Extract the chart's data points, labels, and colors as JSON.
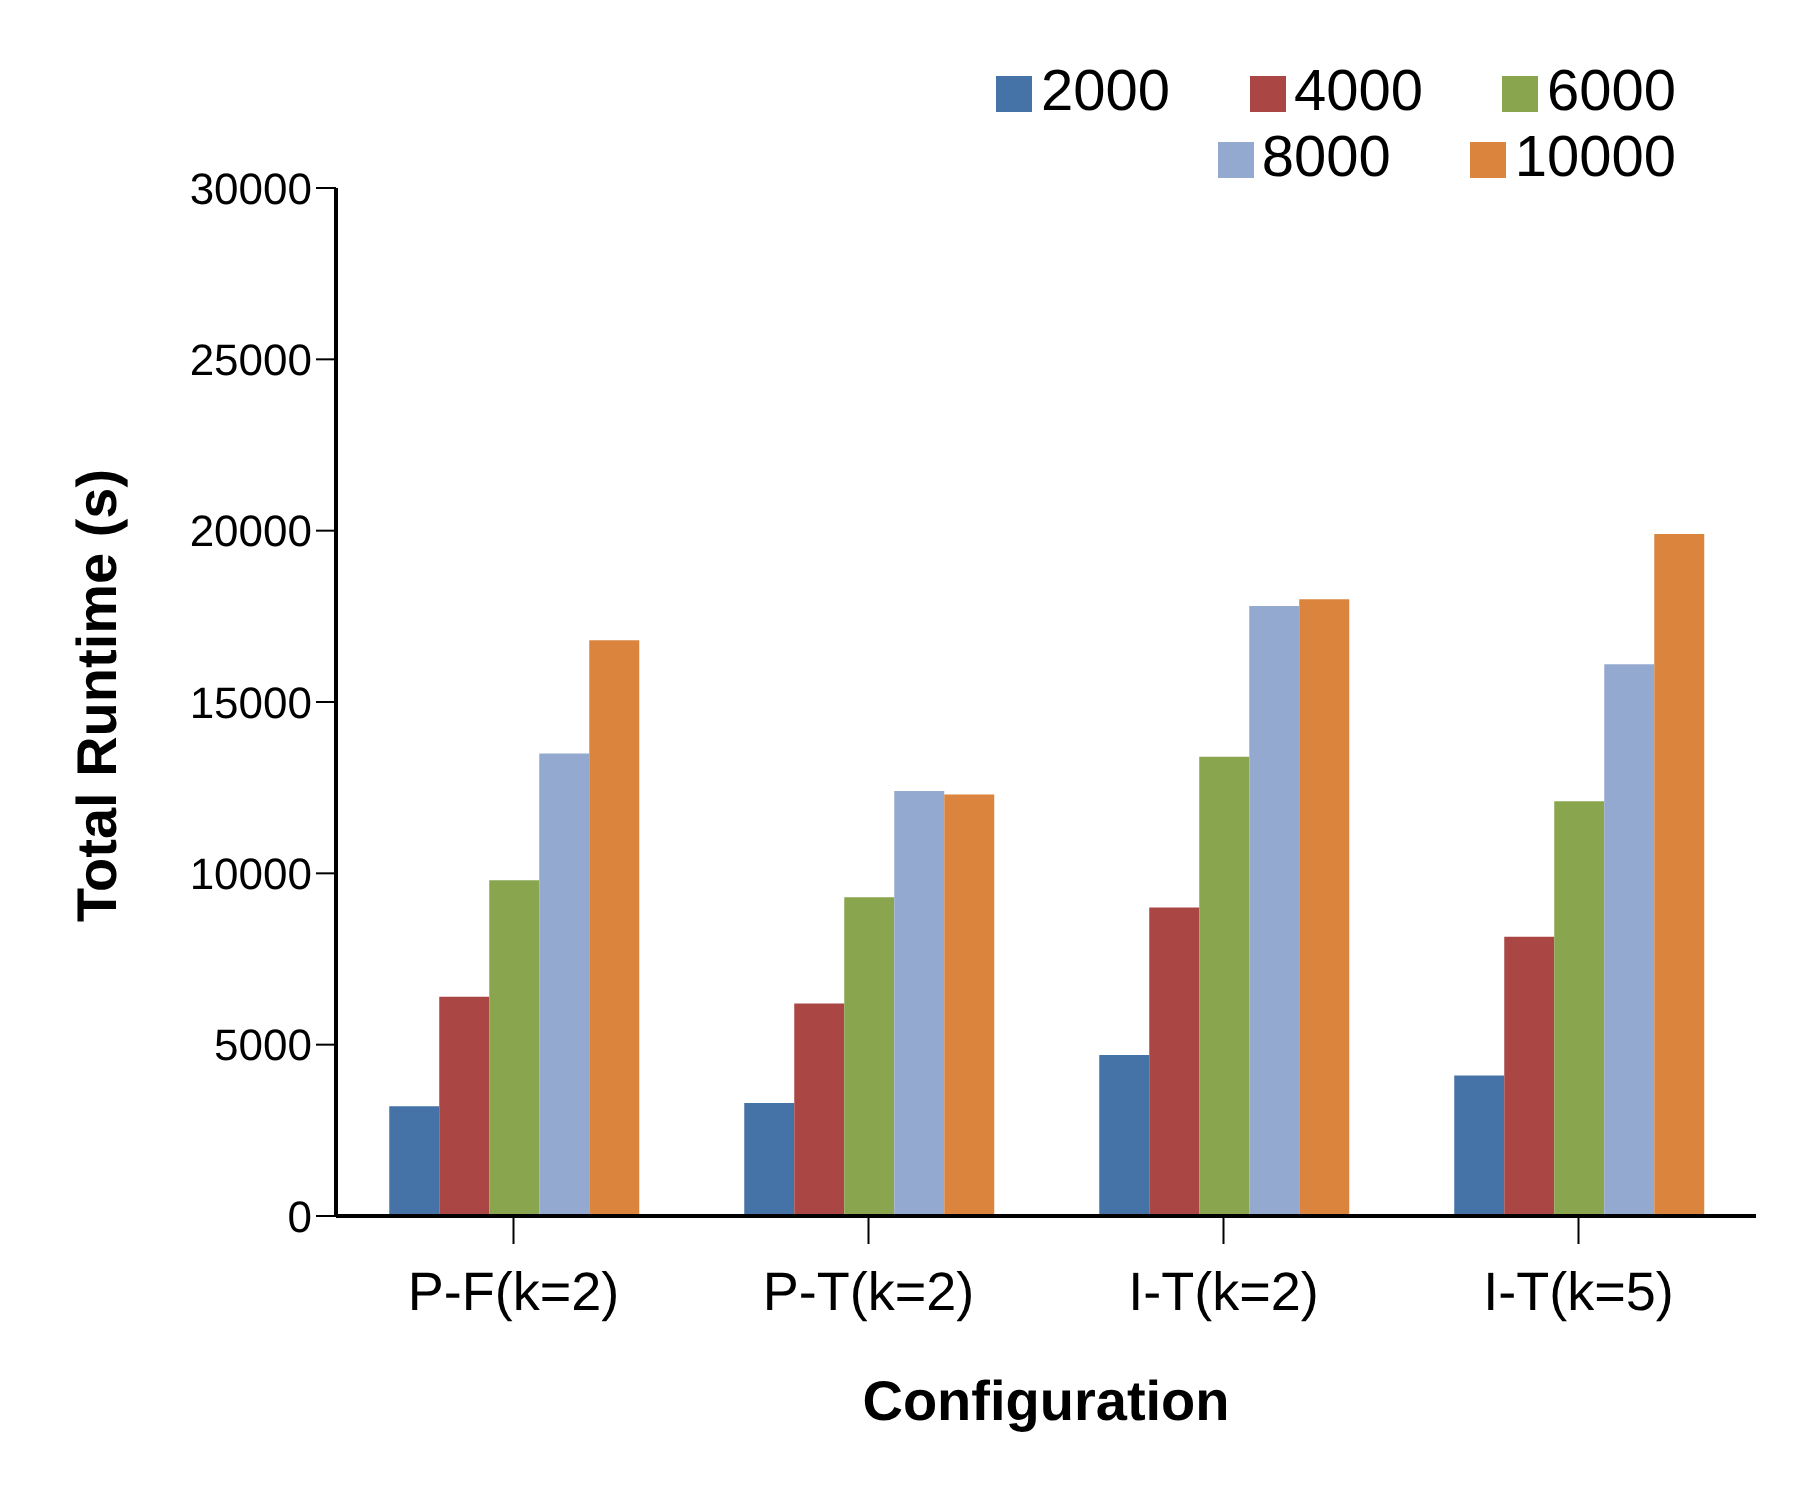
{
  "chart_data": {
    "type": "bar",
    "xlabel": "Configuration",
    "ylabel": "Total Runtime (s)",
    "categories": [
      "P-F(k=2)",
      "P-T(k=2)",
      "I-T(k=2)",
      "I-T(k=5)"
    ],
    "series": [
      {
        "name": "2000",
        "color": "#4572a7",
        "values": [
          3200,
          3300,
          4700,
          4100
        ]
      },
      {
        "name": "4000",
        "color": "#aa4643",
        "values": [
          6400,
          6200,
          9000,
          8150
        ]
      },
      {
        "name": "6000",
        "color": "#89a54e",
        "values": [
          9800,
          9300,
          13400,
          12100
        ]
      },
      {
        "name": "8000",
        "color": "#93a9cf",
        "values": [
          13500,
          12400,
          17800,
          16100
        ]
      },
      {
        "name": "10000",
        "color": "#db843d",
        "values": [
          16800,
          12300,
          18000,
          19900
        ]
      }
    ],
    "ylim": [
      0,
      30000
    ],
    "yticks": [
      0,
      5000,
      10000,
      15000,
      20000,
      25000,
      30000
    ],
    "grid": false,
    "legend": "top right"
  }
}
